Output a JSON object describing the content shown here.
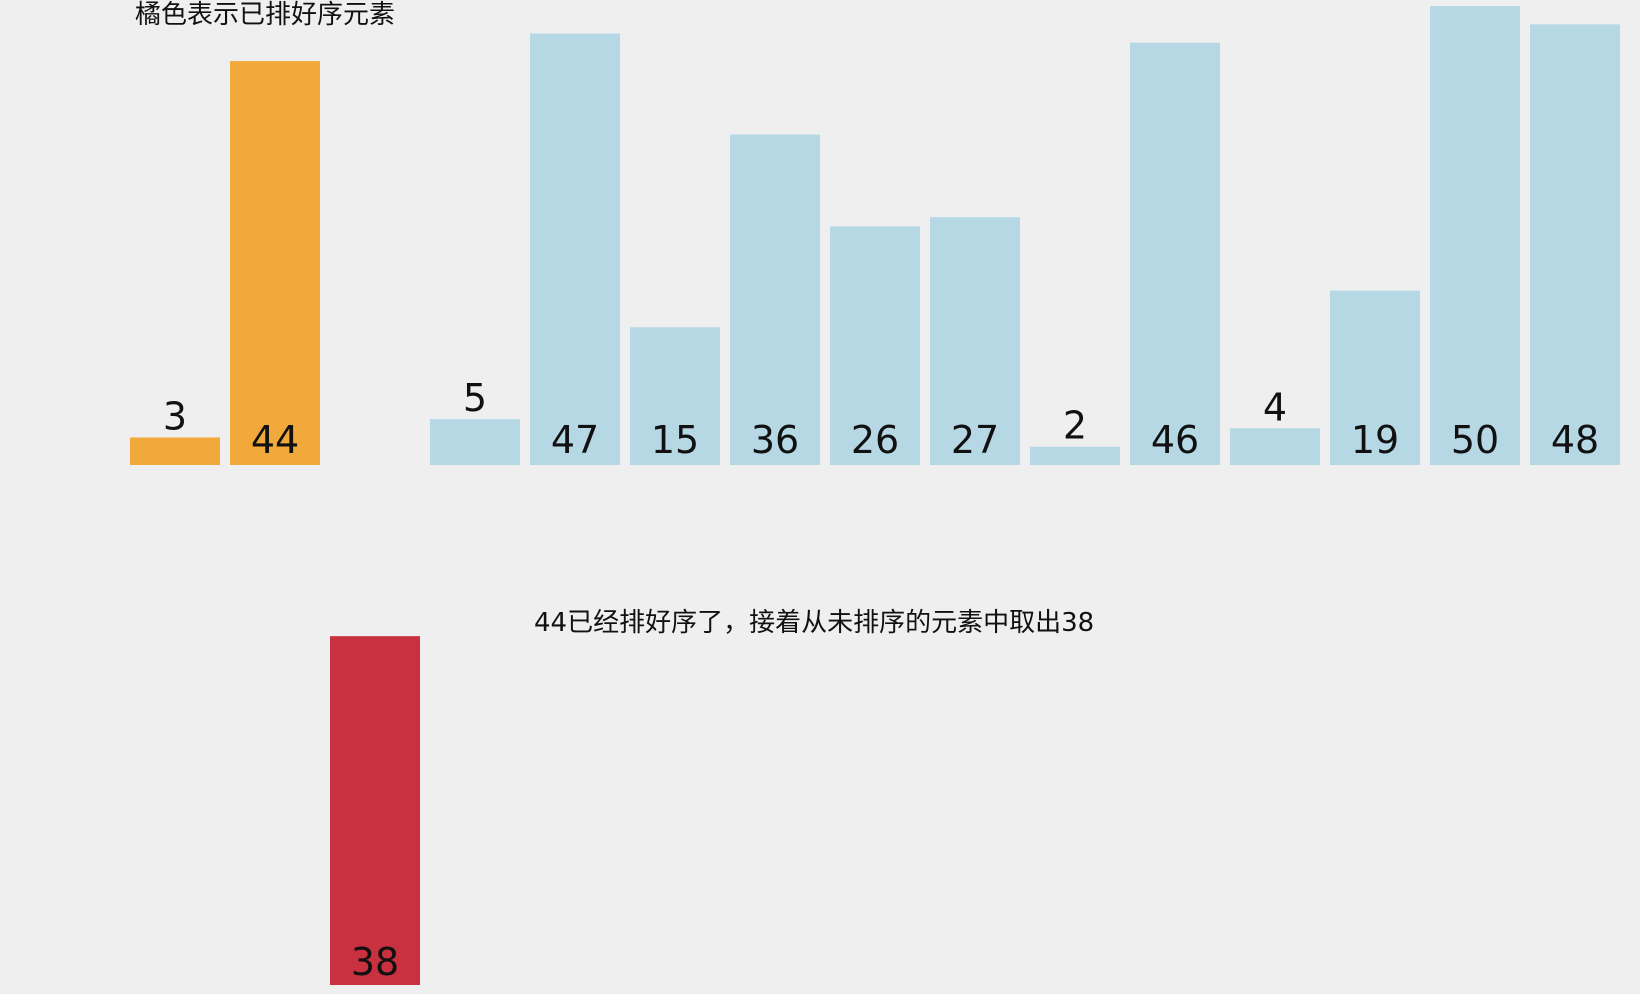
{
  "legend": "橘色表示已排好序元素",
  "caption": "44已经排好序了，接着从未排序的元素中取出38",
  "colors": {
    "sorted": "#f2a93c",
    "unsorted": "#b5d8e4",
    "current": "#c93040",
    "background": "#efefef"
  },
  "chart_data": {
    "type": "bar",
    "title": "",
    "xlabel": "",
    "ylabel": "",
    "grid": false,
    "ylim": [
      0,
      50
    ],
    "values": [
      3,
      44,
      null,
      5,
      47,
      15,
      36,
      26,
      27,
      2,
      46,
      4,
      19,
      50,
      48
    ],
    "states": [
      "sorted",
      "sorted",
      "empty",
      "unsorted",
      "unsorted",
      "unsorted",
      "unsorted",
      "unsorted",
      "unsorted",
      "unsorted",
      "unsorted",
      "unsorted",
      "unsorted",
      "unsorted",
      "unsorted"
    ],
    "current": {
      "value": 38,
      "slot": 2,
      "state": "current"
    }
  }
}
